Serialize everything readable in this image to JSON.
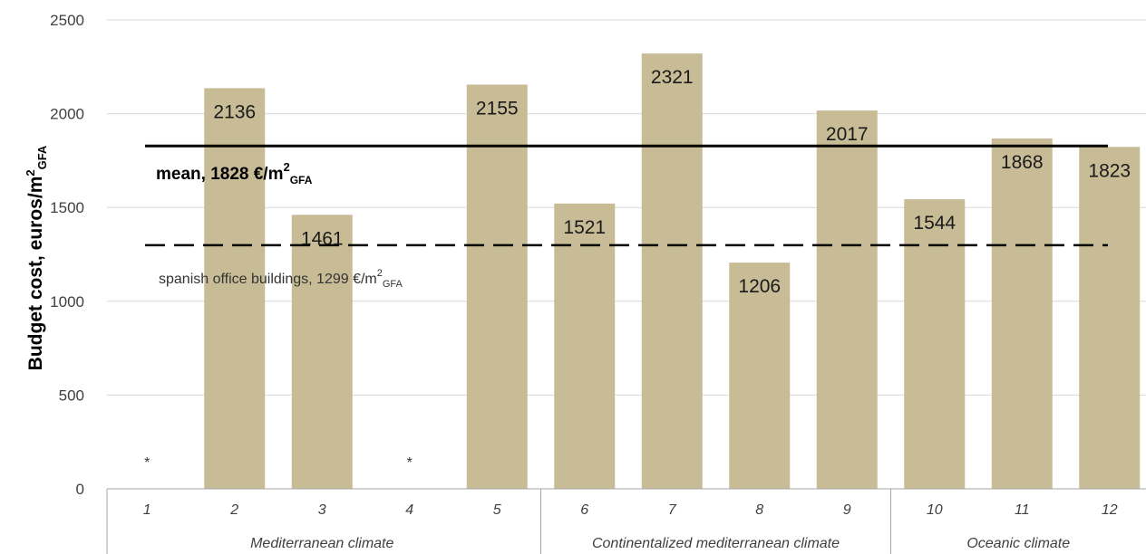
{
  "chart_data": {
    "type": "bar",
    "categories": [
      "1",
      "2",
      "3",
      "4",
      "5",
      "6",
      "7",
      "8",
      "9",
      "10",
      "11",
      "12"
    ],
    "values": [
      null,
      2136,
      1461,
      null,
      2155,
      1521,
      2321,
      1206,
      2017,
      1544,
      1868,
      1823
    ],
    "data_labels": [
      "",
      "2136",
      "1461",
      "",
      "2155",
      "1521",
      "2321",
      "1206",
      "2017",
      "1544",
      "1868",
      "1823"
    ],
    "missing_marker": "*",
    "groups": [
      {
        "label": "Mediterranean climate",
        "categories": [
          "1",
          "2",
          "3",
          "4",
          "5"
        ]
      },
      {
        "label": "Continentalized mediterranean climate",
        "categories": [
          "6",
          "7",
          "8",
          "9"
        ]
      },
      {
        "label": "Oceanic climate",
        "categories": [
          "10",
          "11",
          "12"
        ]
      }
    ],
    "ylabel": {
      "main": "Budget cost, euros/m",
      "sup": "2",
      "sub": "GFA"
    },
    "ylim": [
      0,
      2500
    ],
    "yticks": [
      "0",
      "500",
      "1000",
      "1500",
      "2000",
      "2500"
    ],
    "grid": true,
    "bar_color": "#c8bc96",
    "reference_lines": [
      {
        "value": 1828,
        "style": "solid",
        "label": {
          "main": "mean, 1828 €/m",
          "sup": "2",
          "sub": "GFA"
        }
      },
      {
        "value": 1299,
        "style": "dashed",
        "label": {
          "main": "spanish office buildings, 1299 €/m",
          "sup": "2",
          "sub": "GFA"
        }
      }
    ]
  }
}
